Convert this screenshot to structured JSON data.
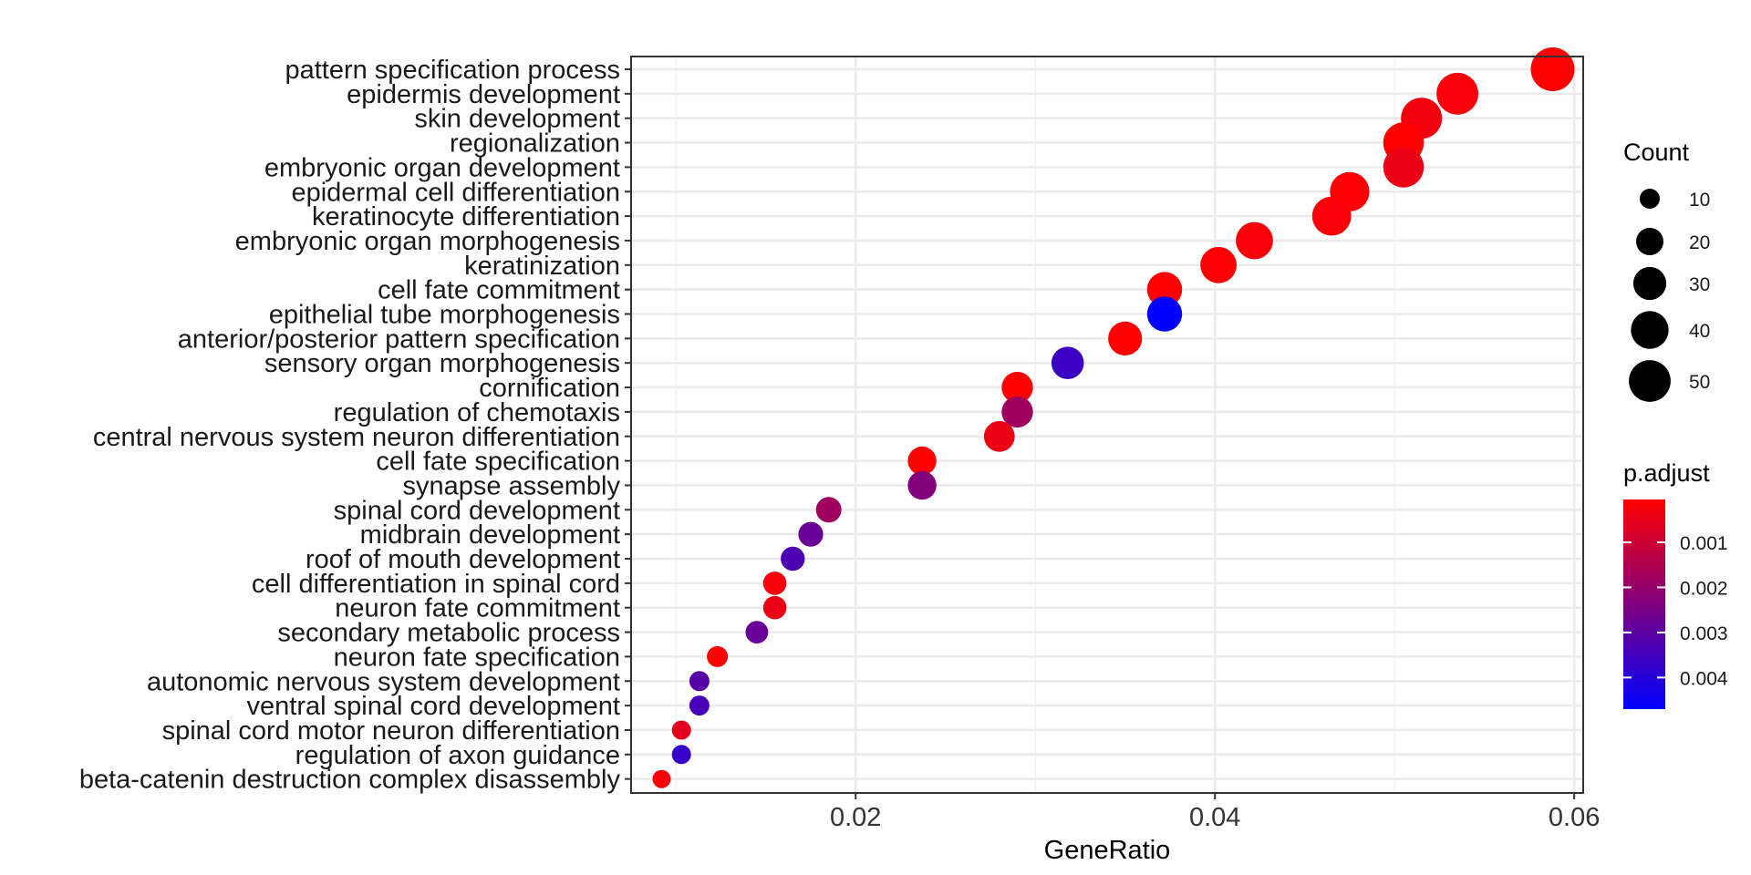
{
  "chart_data": {
    "type": "scatter",
    "xlabel": "GeneRatio",
    "ylabel": "",
    "xlim": [
      0.0075,
      0.0605
    ],
    "x_ticks": [
      0.02,
      0.04,
      0.06
    ],
    "x_tick_labels": [
      "0.02",
      "0.04",
      "0.06"
    ],
    "grid": true,
    "points": [
      {
        "term": "pattern specification process",
        "gene_ratio": 0.0588,
        "count": 55,
        "p_adjust": 5e-05
      },
      {
        "term": "epidermis development",
        "gene_ratio": 0.0535,
        "count": 50,
        "p_adjust": 0.0002
      },
      {
        "term": "skin development",
        "gene_ratio": 0.0515,
        "count": 48,
        "p_adjust": 0.0003
      },
      {
        "term": "regionalization",
        "gene_ratio": 0.0505,
        "count": 47,
        "p_adjust": 5e-05
      },
      {
        "term": "embryonic organ development",
        "gene_ratio": 0.0505,
        "count": 47,
        "p_adjust": 0.0004
      },
      {
        "term": "epidermal cell differentiation",
        "gene_ratio": 0.0475,
        "count": 44,
        "p_adjust": 0.0001
      },
      {
        "term": "keratinocyte differentiation",
        "gene_ratio": 0.0465,
        "count": 43,
        "p_adjust": 0.0002
      },
      {
        "term": "embryonic organ morphogenesis",
        "gene_ratio": 0.0422,
        "count": 39,
        "p_adjust": 0.0002
      },
      {
        "term": "keratinization",
        "gene_ratio": 0.0402,
        "count": 37,
        "p_adjust": 0.0001
      },
      {
        "term": "cell fate commitment",
        "gene_ratio": 0.0372,
        "count": 34,
        "p_adjust": 5e-05
      },
      {
        "term": "epithelial tube morphogenesis",
        "gene_ratio": 0.0372,
        "count": 34,
        "p_adjust": 0.0047
      },
      {
        "term": "anterior/posterior pattern specification",
        "gene_ratio": 0.035,
        "count": 32,
        "p_adjust": 5e-05
      },
      {
        "term": "sensory organ morphogenesis",
        "gene_ratio": 0.0318,
        "count": 29,
        "p_adjust": 0.0036
      },
      {
        "term": "cornification",
        "gene_ratio": 0.029,
        "count": 27,
        "p_adjust": 5e-05
      },
      {
        "term": "regulation of chemotaxis",
        "gene_ratio": 0.029,
        "count": 27,
        "p_adjust": 0.0018
      },
      {
        "term": "central nervous system neuron differentiation",
        "gene_ratio": 0.028,
        "count": 26,
        "p_adjust": 0.0004
      },
      {
        "term": "cell fate specification",
        "gene_ratio": 0.0237,
        "count": 22,
        "p_adjust": 5e-05
      },
      {
        "term": "synapse assembly",
        "gene_ratio": 0.0237,
        "count": 22,
        "p_adjust": 0.0023
      },
      {
        "term": "spinal cord development",
        "gene_ratio": 0.0185,
        "count": 17,
        "p_adjust": 0.0018
      },
      {
        "term": "midbrain development",
        "gene_ratio": 0.0175,
        "count": 16,
        "p_adjust": 0.0028
      },
      {
        "term": "roof of mouth development",
        "gene_ratio": 0.0165,
        "count": 15,
        "p_adjust": 0.0033
      },
      {
        "term": "cell differentiation in spinal cord",
        "gene_ratio": 0.0155,
        "count": 14,
        "p_adjust": 0.0002
      },
      {
        "term": "neuron fate commitment",
        "gene_ratio": 0.0155,
        "count": 14,
        "p_adjust": 0.0004
      },
      {
        "term": "secondary metabolic process",
        "gene_ratio": 0.0145,
        "count": 13,
        "p_adjust": 0.0028
      },
      {
        "term": "neuron fate specification",
        "gene_ratio": 0.0123,
        "count": 11,
        "p_adjust": 0.0001
      },
      {
        "term": "autonomic nervous system development",
        "gene_ratio": 0.0113,
        "count": 10,
        "p_adjust": 0.0031
      },
      {
        "term": "ventral spinal cord development",
        "gene_ratio": 0.0113,
        "count": 10,
        "p_adjust": 0.0034
      },
      {
        "term": "spinal cord motor neuron differentiation",
        "gene_ratio": 0.0103,
        "count": 9,
        "p_adjust": 0.0006
      },
      {
        "term": "regulation of axon guidance",
        "gene_ratio": 0.0103,
        "count": 9,
        "p_adjust": 0.0037
      },
      {
        "term": "beta-catenin destruction complex disassembly",
        "gene_ratio": 0.0092,
        "count": 8,
        "p_adjust": 0.0002
      }
    ],
    "size_legend": {
      "title": "Count",
      "values": [
        10,
        20,
        30,
        40,
        50
      ],
      "labels": [
        "10",
        "20",
        "30",
        "40",
        "50"
      ]
    },
    "color_legend": {
      "title": "p.adjust",
      "range": [
        5e-05,
        0.0047
      ],
      "ticks": [
        0.001,
        0.002,
        0.003,
        0.004
      ],
      "tick_labels": [
        "0.001",
        "0.002",
        "0.003",
        "0.004"
      ],
      "low_color": "#FF0000",
      "high_color": "#0000FF"
    },
    "legend_position": "right"
  }
}
